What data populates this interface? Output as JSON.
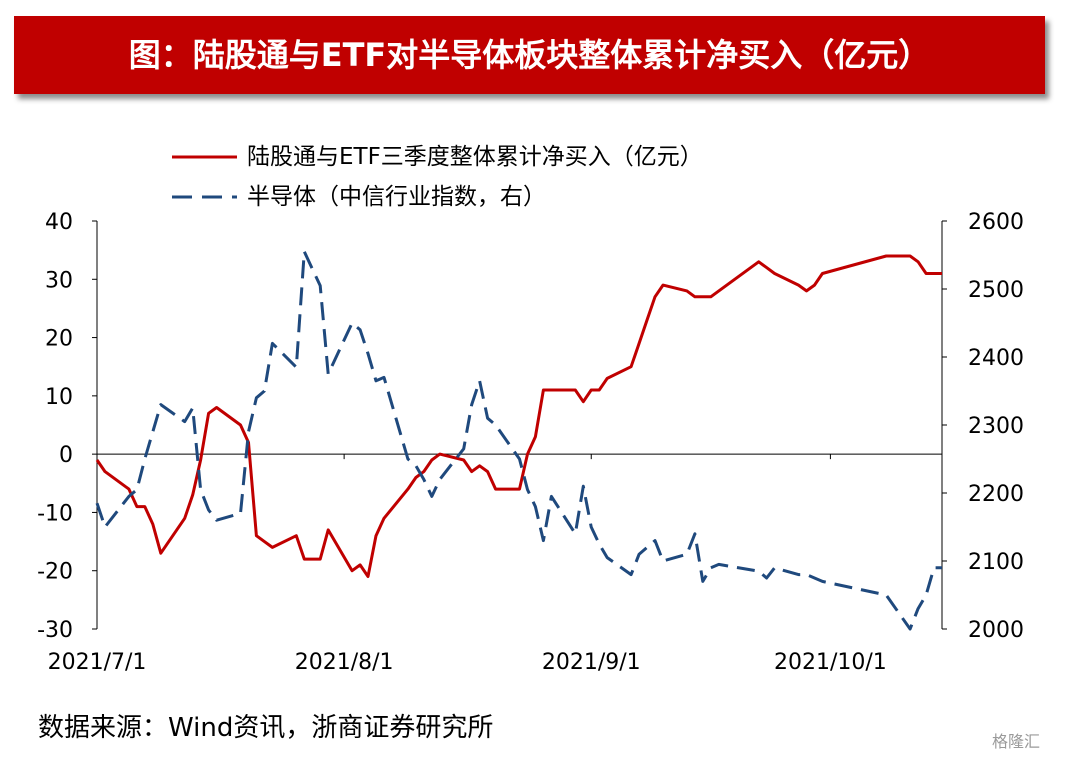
{
  "title": "图：陆股通与ETF对半导体板块整体累计净买入（亿元）",
  "source": "数据来源：Wind资讯，浙商证券研究所",
  "watermark": "格隆汇",
  "colors": {
    "title_bg": "#c00000",
    "series_left": "#c00000",
    "series_right": "#1f497d",
    "axis": "#000000"
  },
  "chart_data": {
    "type": "line",
    "x_ticks": [
      "2021/7/1",
      "2021/8/1",
      "2021/9/1",
      "2021/10/1"
    ],
    "y_left": {
      "min": -30,
      "max": 40,
      "ticks": [
        -30,
        -20,
        -10,
        0,
        10,
        20,
        30,
        40
      ]
    },
    "y_right": {
      "min": 2000,
      "max": 2600,
      "ticks": [
        2000,
        2100,
        2200,
        2300,
        2400,
        2500,
        2600
      ]
    },
    "series": [
      {
        "name": "陆股通与ETF三季度整体累计净买入（亿元）",
        "axis": "left",
        "style": "solid",
        "dates": [
          "2021-07-01",
          "2021-07-02",
          "2021-07-05",
          "2021-07-06",
          "2021-07-07",
          "2021-07-08",
          "2021-07-09",
          "2021-07-12",
          "2021-07-13",
          "2021-07-14",
          "2021-07-15",
          "2021-07-16",
          "2021-07-19",
          "2021-07-20",
          "2021-07-21",
          "2021-07-22",
          "2021-07-23",
          "2021-07-26",
          "2021-07-27",
          "2021-07-28",
          "2021-07-29",
          "2021-07-30",
          "2021-08-02",
          "2021-08-03",
          "2021-08-04",
          "2021-08-05",
          "2021-08-06",
          "2021-08-09",
          "2021-08-10",
          "2021-08-11",
          "2021-08-12",
          "2021-08-13",
          "2021-08-16",
          "2021-08-17",
          "2021-08-18",
          "2021-08-19",
          "2021-08-20",
          "2021-08-23",
          "2021-08-24",
          "2021-08-25",
          "2021-08-26",
          "2021-08-27",
          "2021-08-30",
          "2021-08-31",
          "2021-09-01",
          "2021-09-02",
          "2021-09-03",
          "2021-09-06",
          "2021-09-07",
          "2021-09-08",
          "2021-09-09",
          "2021-09-10",
          "2021-09-13",
          "2021-09-14",
          "2021-09-15",
          "2021-09-16",
          "2021-09-17",
          "2021-09-22",
          "2021-09-23",
          "2021-09-24",
          "2021-09-27",
          "2021-09-28",
          "2021-09-29",
          "2021-09-30",
          "2021-10-08",
          "2021-10-11",
          "2021-10-12",
          "2021-10-13",
          "2021-10-14",
          "2021-10-15"
        ],
        "values": [
          -1,
          -3,
          -6,
          -9,
          -9,
          -12,
          -17,
          -11,
          -7,
          -1,
          7,
          8,
          5,
          2,
          -14,
          -15,
          -16,
          -14,
          -18,
          -18,
          -18,
          -13,
          -20,
          -19,
          -21,
          -14,
          -11,
          -6,
          -4,
          -3,
          -1,
          0,
          -1,
          -3,
          -2,
          -3,
          -6,
          -6,
          0,
          3,
          11,
          11,
          11,
          9,
          11,
          11,
          13,
          15,
          19,
          23,
          27,
          29,
          28,
          27,
          27,
          27,
          28,
          33,
          32,
          31,
          29,
          28,
          29,
          31,
          34,
          34,
          33,
          31,
          31,
          31
        ]
      },
      {
        "name": "半导体（中信行业指数，右）",
        "axis": "right",
        "style": "dashed",
        "dates": [
          "2021-07-01",
          "2021-07-02",
          "2021-07-05",
          "2021-07-06",
          "2021-07-07",
          "2021-07-08",
          "2021-07-09",
          "2021-07-12",
          "2021-07-13",
          "2021-07-14",
          "2021-07-15",
          "2021-07-16",
          "2021-07-19",
          "2021-07-20",
          "2021-07-21",
          "2021-07-22",
          "2021-07-23",
          "2021-07-26",
          "2021-07-27",
          "2021-07-28",
          "2021-07-29",
          "2021-07-30",
          "2021-08-02",
          "2021-08-03",
          "2021-08-04",
          "2021-08-05",
          "2021-08-06",
          "2021-08-09",
          "2021-08-10",
          "2021-08-11",
          "2021-08-12",
          "2021-08-13",
          "2021-08-16",
          "2021-08-17",
          "2021-08-18",
          "2021-08-19",
          "2021-08-20",
          "2021-08-23",
          "2021-08-24",
          "2021-08-25",
          "2021-08-26",
          "2021-08-27",
          "2021-08-30",
          "2021-08-31",
          "2021-09-01",
          "2021-09-02",
          "2021-09-03",
          "2021-09-06",
          "2021-09-07",
          "2021-09-08",
          "2021-09-09",
          "2021-09-10",
          "2021-09-13",
          "2021-09-14",
          "2021-09-15",
          "2021-09-16",
          "2021-09-17",
          "2021-09-22",
          "2021-09-23",
          "2021-09-24",
          "2021-09-27",
          "2021-09-28",
          "2021-09-29",
          "2021-09-30",
          "2021-10-08",
          "2021-10-11",
          "2021-10-12",
          "2021-10-13",
          "2021-10-14",
          "2021-10-15"
        ],
        "values": [
          2185,
          2150,
          2195,
          2205,
          2250,
          2290,
          2330,
          2305,
          2325,
          2205,
          2175,
          2160,
          2170,
          2290,
          2340,
          2350,
          2420,
          2385,
          2555,
          2530,
          2505,
          2375,
          2450,
          2440,
          2405,
          2365,
          2370,
          2250,
          2240,
          2220,
          2195,
          2220,
          2265,
          2330,
          2365,
          2310,
          2300,
          2250,
          2205,
          2180,
          2130,
          2195,
          2140,
          2210,
          2150,
          2125,
          2105,
          2080,
          2110,
          2120,
          2130,
          2100,
          2110,
          2140,
          2070,
          2090,
          2095,
          2085,
          2075,
          2090,
          2080,
          2080,
          2075,
          2070,
          2050,
          2000,
          2030,
          2050,
          2090,
          2090
        ]
      }
    ]
  }
}
